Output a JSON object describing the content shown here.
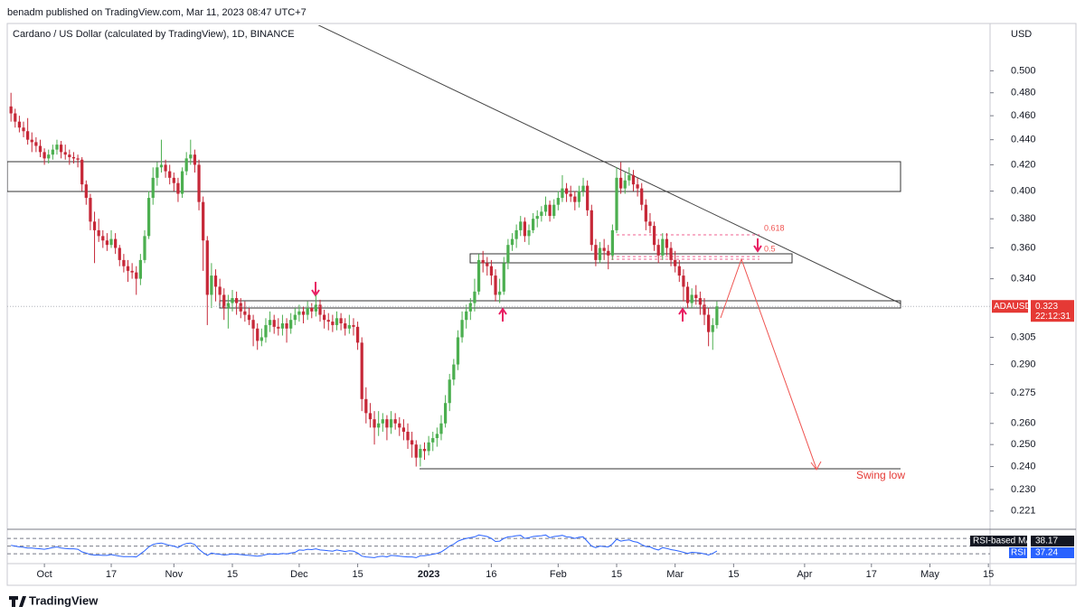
{
  "chart_data": {
    "type": "candlestick",
    "publisher": "benadm published on TradingView.com, Mar 11, 2023 08:47 UTC+7",
    "title": "Cardano / US Dollar (calculated by TradingView), 1D, BINANCE",
    "currency": "USD",
    "symbol": "ADAUSD",
    "last_price": 0.323,
    "countdown": "22:12:31",
    "brand": "TradingView",
    "log_scale": true,
    "up_color": "#4caf50",
    "down_color": "#c62838",
    "ylim": [
      0.214,
      0.544
    ],
    "yticks": [
      {
        "value": 0.5,
        "label": "0.500"
      },
      {
        "value": 0.48,
        "label": "0.480"
      },
      {
        "value": 0.46,
        "label": "0.460"
      },
      {
        "value": 0.44,
        "label": "0.440"
      },
      {
        "value": 0.42,
        "label": "0.420"
      },
      {
        "value": 0.4,
        "label": "0.400"
      },
      {
        "value": 0.38,
        "label": "0.380"
      },
      {
        "value": 0.36,
        "label": "0.360"
      },
      {
        "value": 0.34,
        "label": "0.340"
      },
      0.305,
      {
        "value": 0.29,
        "label": "0.290"
      },
      0.275,
      {
        "value": 0.26,
        "label": "0.260"
      },
      {
        "value": 0.25,
        "label": "0.250"
      },
      {
        "value": 0.24,
        "label": "0.240"
      },
      {
        "value": 0.23,
        "label": "0.230"
      },
      0.221
    ],
    "xlim": [
      -0.9,
      234.4
    ],
    "xticks": [
      {
        "value": 8,
        "label": "Oct"
      },
      {
        "value": 24,
        "label": "17"
      },
      {
        "value": 39,
        "label": "Nov"
      },
      {
        "value": 53,
        "label": "15"
      },
      {
        "value": 69,
        "label": "Dec"
      },
      {
        "value": 83,
        "label": "15"
      },
      {
        "value": 100,
        "label": "2023"
      },
      {
        "value": 115,
        "label": "16"
      },
      {
        "value": 131,
        "label": "Feb"
      },
      {
        "value": 145,
        "label": "15"
      },
      {
        "value": 159,
        "label": "Mar"
      },
      {
        "value": 173,
        "label": "15"
      },
      {
        "value": 190,
        "label": "Apr"
      },
      {
        "value": 206,
        "label": "17"
      },
      {
        "value": 220,
        "label": "May"
      },
      {
        "value": 234,
        "label": "15"
      }
    ],
    "fib_levels": [
      0.618,
      0.5
    ],
    "annotation": "Swing low",
    "ohlc": [
      [
        0.468,
        0.48,
        0.455,
        0.462
      ],
      [
        0.462,
        0.466,
        0.45,
        0.455
      ],
      [
        0.455,
        0.46,
        0.446,
        0.45
      ],
      [
        0.45,
        0.455,
        0.442,
        0.447
      ],
      [
        0.447,
        0.458,
        0.436,
        0.44
      ],
      [
        0.44,
        0.446,
        0.43,
        0.438
      ],
      [
        0.438,
        0.442,
        0.43,
        0.435
      ],
      [
        0.435,
        0.44,
        0.426,
        0.43
      ],
      [
        0.43,
        0.433,
        0.42,
        0.425
      ],
      [
        0.425,
        0.432,
        0.421,
        0.428
      ],
      [
        0.428,
        0.436,
        0.424,
        0.432
      ],
      [
        0.432,
        0.44,
        0.428,
        0.436
      ],
      [
        0.436,
        0.439,
        0.425,
        0.43
      ],
      [
        0.43,
        0.436,
        0.424,
        0.428
      ],
      [
        0.428,
        0.432,
        0.42,
        0.426
      ],
      [
        0.426,
        0.43,
        0.421,
        0.425
      ],
      [
        0.425,
        0.428,
        0.418,
        0.424
      ],
      [
        0.424,
        0.426,
        0.4,
        0.405
      ],
      [
        0.405,
        0.408,
        0.39,
        0.395
      ],
      [
        0.395,
        0.398,
        0.372,
        0.378
      ],
      [
        0.378,
        0.385,
        0.35,
        0.372
      ],
      [
        0.372,
        0.38,
        0.364,
        0.368
      ],
      [
        0.368,
        0.372,
        0.36,
        0.365
      ],
      [
        0.365,
        0.37,
        0.358,
        0.362
      ],
      [
        0.362,
        0.372,
        0.36,
        0.366
      ],
      [
        0.366,
        0.37,
        0.356,
        0.36
      ],
      [
        0.36,
        0.362,
        0.348,
        0.352
      ],
      [
        0.352,
        0.356,
        0.344,
        0.348
      ],
      [
        0.348,
        0.352,
        0.338,
        0.345
      ],
      [
        0.345,
        0.35,
        0.34,
        0.344
      ],
      [
        0.344,
        0.348,
        0.33,
        0.34
      ],
      [
        0.34,
        0.356,
        0.336,
        0.352
      ],
      [
        0.352,
        0.372,
        0.35,
        0.368
      ],
      [
        0.368,
        0.4,
        0.366,
        0.395
      ],
      [
        0.395,
        0.418,
        0.39,
        0.41
      ],
      [
        0.41,
        0.422,
        0.404,
        0.418
      ],
      [
        0.418,
        0.44,
        0.414,
        0.42
      ],
      [
        0.42,
        0.424,
        0.41,
        0.415
      ],
      [
        0.415,
        0.42,
        0.405,
        0.41
      ],
      [
        0.41,
        0.414,
        0.4,
        0.406
      ],
      [
        0.406,
        0.41,
        0.392,
        0.398
      ],
      [
        0.398,
        0.418,
        0.395,
        0.415
      ],
      [
        0.415,
        0.43,
        0.412,
        0.425
      ],
      [
        0.425,
        0.44,
        0.42,
        0.428
      ],
      [
        0.428,
        0.432,
        0.414,
        0.42
      ],
      [
        0.42,
        0.424,
        0.386,
        0.392
      ],
      [
        0.392,
        0.396,
        0.345,
        0.365
      ],
      [
        0.365,
        0.368,
        0.312,
        0.33
      ],
      [
        0.33,
        0.35,
        0.322,
        0.342
      ],
      [
        0.342,
        0.346,
        0.326,
        0.335
      ],
      [
        0.335,
        0.34,
        0.325,
        0.33
      ],
      [
        0.33,
        0.334,
        0.315,
        0.322
      ],
      [
        0.322,
        0.33,
        0.31,
        0.325
      ],
      [
        0.325,
        0.333,
        0.32,
        0.328
      ],
      [
        0.328,
        0.332,
        0.318,
        0.325
      ],
      [
        0.325,
        0.328,
        0.316,
        0.32
      ],
      [
        0.32,
        0.326,
        0.314,
        0.318
      ],
      [
        0.318,
        0.322,
        0.312,
        0.315
      ],
      [
        0.315,
        0.318,
        0.3,
        0.31
      ],
      [
        0.31,
        0.313,
        0.298,
        0.303
      ],
      [
        0.303,
        0.31,
        0.3,
        0.305
      ],
      [
        0.305,
        0.316,
        0.302,
        0.312
      ],
      [
        0.312,
        0.32,
        0.308,
        0.315
      ],
      [
        0.315,
        0.318,
        0.307,
        0.311
      ],
      [
        0.311,
        0.316,
        0.306,
        0.31
      ],
      [
        0.31,
        0.318,
        0.306,
        0.313
      ],
      [
        0.313,
        0.316,
        0.302,
        0.31
      ],
      [
        0.31,
        0.319,
        0.307,
        0.315
      ],
      [
        0.315,
        0.322,
        0.312,
        0.318
      ],
      [
        0.318,
        0.324,
        0.314,
        0.32
      ],
      [
        0.32,
        0.323,
        0.313,
        0.318
      ],
      [
        0.318,
        0.326,
        0.315,
        0.322
      ],
      [
        0.322,
        0.325,
        0.316,
        0.32
      ],
      [
        0.32,
        0.33,
        0.317,
        0.324
      ],
      [
        0.324,
        0.327,
        0.314,
        0.318
      ],
      [
        0.318,
        0.321,
        0.31,
        0.315
      ],
      [
        0.315,
        0.319,
        0.309,
        0.314
      ],
      [
        0.314,
        0.318,
        0.308,
        0.312
      ],
      [
        0.312,
        0.32,
        0.309,
        0.316
      ],
      [
        0.316,
        0.319,
        0.309,
        0.313
      ],
      [
        0.313,
        0.316,
        0.306,
        0.31
      ],
      [
        0.31,
        0.318,
        0.307,
        0.312
      ],
      [
        0.312,
        0.316,
        0.306,
        0.311
      ],
      [
        0.311,
        0.314,
        0.298,
        0.302
      ],
      [
        0.302,
        0.305,
        0.266,
        0.272
      ],
      [
        0.272,
        0.278,
        0.26,
        0.265
      ],
      [
        0.265,
        0.27,
        0.258,
        0.262
      ],
      [
        0.262,
        0.266,
        0.25,
        0.258
      ],
      [
        0.258,
        0.266,
        0.254,
        0.26
      ],
      [
        0.26,
        0.265,
        0.256,
        0.262
      ],
      [
        0.262,
        0.264,
        0.252,
        0.258
      ],
      [
        0.258,
        0.266,
        0.255,
        0.262
      ],
      [
        0.262,
        0.265,
        0.257,
        0.26
      ],
      [
        0.26,
        0.263,
        0.254,
        0.258
      ],
      [
        0.258,
        0.262,
        0.252,
        0.256
      ],
      [
        0.256,
        0.26,
        0.248,
        0.252
      ],
      [
        0.252,
        0.256,
        0.244,
        0.25
      ],
      [
        0.25,
        0.252,
        0.24,
        0.244
      ],
      [
        0.244,
        0.25,
        0.24,
        0.248
      ],
      [
        0.248,
        0.251,
        0.243,
        0.247
      ],
      [
        0.247,
        0.254,
        0.245,
        0.251
      ],
      [
        0.251,
        0.256,
        0.247,
        0.253
      ],
      [
        0.253,
        0.258,
        0.249,
        0.255
      ],
      [
        0.255,
        0.264,
        0.252,
        0.26
      ],
      [
        0.26,
        0.274,
        0.258,
        0.27
      ],
      [
        0.27,
        0.285,
        0.266,
        0.282
      ],
      [
        0.282,
        0.293,
        0.279,
        0.29
      ],
      [
        0.29,
        0.309,
        0.287,
        0.305
      ],
      [
        0.305,
        0.32,
        0.302,
        0.315
      ],
      [
        0.315,
        0.324,
        0.31,
        0.32
      ],
      [
        0.32,
        0.328,
        0.315,
        0.325
      ],
      [
        0.325,
        0.34,
        0.32,
        0.332
      ],
      [
        0.332,
        0.356,
        0.33,
        0.352
      ],
      [
        0.352,
        0.358,
        0.344,
        0.35
      ],
      [
        0.35,
        0.354,
        0.342,
        0.348
      ],
      [
        0.348,
        0.352,
        0.336,
        0.342
      ],
      [
        0.342,
        0.346,
        0.326,
        0.33
      ],
      [
        0.33,
        0.34,
        0.325,
        0.332
      ],
      [
        0.332,
        0.354,
        0.33,
        0.35
      ],
      [
        0.35,
        0.366,
        0.346,
        0.362
      ],
      [
        0.362,
        0.37,
        0.358,
        0.366
      ],
      [
        0.366,
        0.376,
        0.36,
        0.372
      ],
      [
        0.372,
        0.382,
        0.368,
        0.378
      ],
      [
        0.378,
        0.381,
        0.364,
        0.368
      ],
      [
        0.368,
        0.376,
        0.362,
        0.372
      ],
      [
        0.372,
        0.384,
        0.37,
        0.38
      ],
      [
        0.38,
        0.386,
        0.374,
        0.382
      ],
      [
        0.382,
        0.389,
        0.378,
        0.385
      ],
      [
        0.385,
        0.396,
        0.382,
        0.39
      ],
      [
        0.39,
        0.393,
        0.378,
        0.382
      ],
      [
        0.382,
        0.394,
        0.38,
        0.39
      ],
      [
        0.39,
        0.4,
        0.386,
        0.395
      ],
      [
        0.395,
        0.412,
        0.392,
        0.402
      ],
      [
        0.402,
        0.406,
        0.392,
        0.398
      ],
      [
        0.398,
        0.404,
        0.392,
        0.396
      ],
      [
        0.396,
        0.4,
        0.386,
        0.392
      ],
      [
        0.392,
        0.404,
        0.388,
        0.4
      ],
      [
        0.4,
        0.41,
        0.396,
        0.404
      ],
      [
        0.404,
        0.408,
        0.382,
        0.386
      ],
      [
        0.386,
        0.39,
        0.358,
        0.362
      ],
      [
        0.362,
        0.366,
        0.348,
        0.352
      ],
      [
        0.352,
        0.364,
        0.35,
        0.36
      ],
      [
        0.36,
        0.366,
        0.352,
        0.358
      ],
      [
        0.358,
        0.362,
        0.346,
        0.355
      ],
      [
        0.355,
        0.376,
        0.352,
        0.372
      ],
      [
        0.372,
        0.418,
        0.37,
        0.41
      ],
      [
        0.41,
        0.422,
        0.398,
        0.402
      ],
      [
        0.402,
        0.414,
        0.398,
        0.408
      ],
      [
        0.408,
        0.418,
        0.404,
        0.412
      ],
      [
        0.412,
        0.416,
        0.4,
        0.405
      ],
      [
        0.405,
        0.41,
        0.396,
        0.402
      ],
      [
        0.402,
        0.406,
        0.386,
        0.39
      ],
      [
        0.39,
        0.394,
        0.372,
        0.378
      ],
      [
        0.378,
        0.384,
        0.37,
        0.375
      ],
      [
        0.375,
        0.378,
        0.358,
        0.362
      ],
      [
        0.362,
        0.366,
        0.35,
        0.355
      ],
      [
        0.355,
        0.37,
        0.352,
        0.366
      ],
      [
        0.366,
        0.37,
        0.355,
        0.36
      ],
      [
        0.36,
        0.364,
        0.348,
        0.352
      ],
      [
        0.352,
        0.358,
        0.344,
        0.348
      ],
      [
        0.348,
        0.352,
        0.338,
        0.342
      ],
      [
        0.342,
        0.346,
        0.326,
        0.335
      ],
      [
        0.335,
        0.338,
        0.322,
        0.325
      ],
      [
        0.325,
        0.334,
        0.322,
        0.33
      ],
      [
        0.33,
        0.336,
        0.324,
        0.328
      ],
      [
        0.328,
        0.332,
        0.318,
        0.324
      ],
      [
        0.324,
        0.328,
        0.312,
        0.318
      ],
      [
        0.318,
        0.322,
        0.3,
        0.308
      ],
      [
        0.308,
        0.316,
        0.298,
        0.312
      ],
      [
        0.312,
        0.326,
        0.31,
        0.323
      ]
    ],
    "rsi": {
      "name": "RSI",
      "color": "#2962ff",
      "ylim": [
        14,
        89
      ],
      "levels": [
        70,
        50,
        30
      ],
      "ma_name": "RSI-based MA",
      "ma_value": 38.17,
      "values": [
        52,
        50,
        48,
        47,
        45,
        45,
        44,
        43,
        42,
        44,
        46,
        48,
        45,
        44,
        43,
        43,
        42,
        35,
        32,
        28,
        27,
        27,
        26,
        26,
        28,
        26,
        24,
        23,
        23,
        23,
        22,
        30,
        38,
        48,
        54,
        57,
        58,
        55,
        52,
        50,
        46,
        53,
        57,
        58,
        54,
        42,
        33,
        26,
        32,
        30,
        29,
        27,
        28,
        30,
        29,
        28,
        27,
        26,
        25,
        24,
        25,
        28,
        30,
        29,
        29,
        31,
        30,
        32,
        34,
        40,
        39,
        42,
        41,
        43,
        40,
        39,
        38,
        37,
        40,
        38,
        36,
        38,
        37,
        32,
        24,
        22,
        21,
        20,
        23,
        24,
        22,
        26,
        25,
        24,
        23,
        22,
        22,
        20,
        25,
        25,
        27,
        29,
        31,
        35,
        42,
        50,
        55,
        63,
        67,
        70,
        72,
        74,
        79,
        77,
        75,
        70,
        62,
        63,
        70,
        74,
        75,
        77,
        78,
        70,
        72,
        75,
        76,
        77,
        79,
        72,
        75,
        76,
        78,
        74,
        73,
        70,
        73,
        74,
        62,
        50,
        46,
        50,
        49,
        48,
        56,
        68,
        63,
        65,
        66,
        62,
        60,
        54,
        49,
        48,
        43,
        40,
        46,
        44,
        41,
        39,
        37,
        34,
        31,
        34,
        33,
        32,
        30,
        27,
        31,
        37.24
      ]
    }
  }
}
